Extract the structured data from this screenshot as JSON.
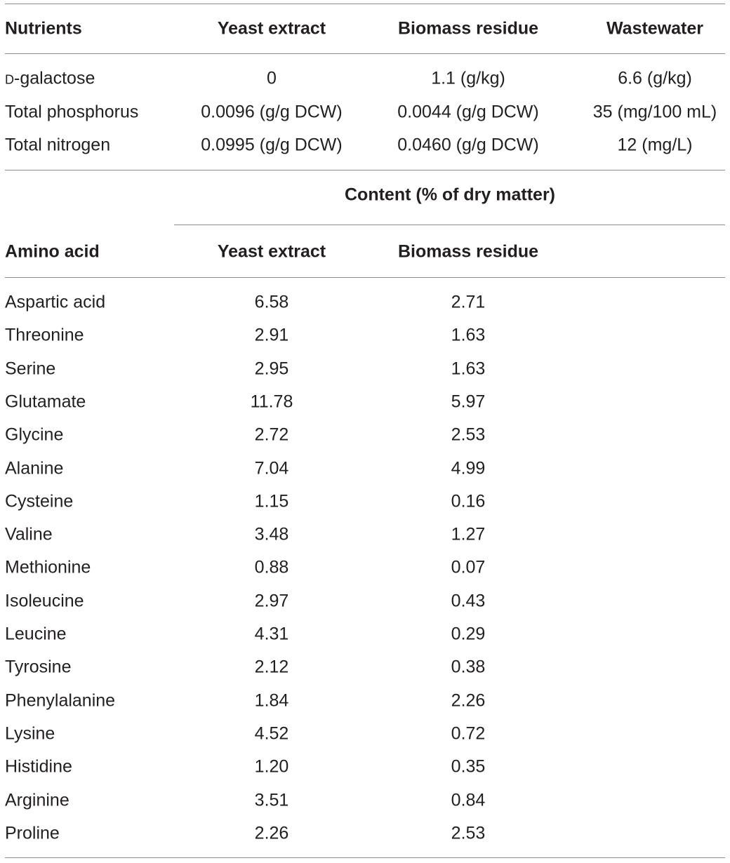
{
  "table1": {
    "header": [
      "Nutrients",
      "Yeast extract",
      "Biomass residue",
      "Wastewater"
    ],
    "rows": [
      [
        "D-galactose",
        "0",
        "1.1 (g/kg)",
        "6.6 (g/kg)"
      ],
      [
        "Total phosphorus",
        "0.0096 (g/g DCW)",
        "0.0044 (g/g DCW)",
        "35 (mg/100 mL)"
      ],
      [
        "Total nitrogen",
        "0.0995 (g/g DCW)",
        "0.0460 (g/g DCW)",
        "12 (mg/L)"
      ]
    ]
  },
  "table2": {
    "spanning_header": "Content (% of dry matter)",
    "header": [
      "Amino acid",
      "Yeast extract",
      "Biomass residue"
    ],
    "rows": [
      [
        "Aspartic acid",
        "6.58",
        "2.71"
      ],
      [
        "Threonine",
        "2.91",
        "1.63"
      ],
      [
        "Serine",
        "2.95",
        "1.63"
      ],
      [
        "Glutamate",
        "11.78",
        "5.97"
      ],
      [
        "Glycine",
        "2.72",
        "2.53"
      ],
      [
        "Alanine",
        "7.04",
        "4.99"
      ],
      [
        "Cysteine",
        "1.15",
        "0.16"
      ],
      [
        "Valine",
        "3.48",
        "1.27"
      ],
      [
        "Methionine",
        "0.88",
        "0.07"
      ],
      [
        "Isoleucine",
        "2.97",
        "0.43"
      ],
      [
        "Leucine",
        "4.31",
        "0.29"
      ],
      [
        "Tyrosine",
        "2.12",
        "0.38"
      ],
      [
        "Phenylalanine",
        "1.84",
        "2.26"
      ],
      [
        "Lysine",
        "4.52",
        "0.72"
      ],
      [
        "Histidine",
        "1.20",
        "0.35"
      ],
      [
        "Arginine",
        "3.51",
        "0.84"
      ],
      [
        "Proline",
        "2.26",
        "2.53"
      ]
    ]
  }
}
